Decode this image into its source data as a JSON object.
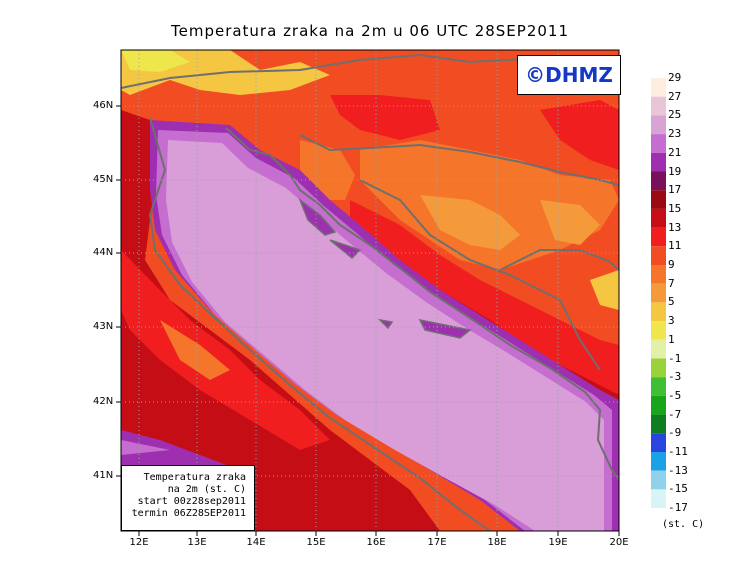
{
  "title": "Temperatura zraka na 2m u 06 UTC 28SEP2011",
  "logo_text": "©DHMZ",
  "info_box": {
    "line1": "Temperatura zraka",
    "line2": "na 2m (st. C)",
    "line3": "start 00z28sep2011",
    "line4": "termin 06Z28SEP2011"
  },
  "axes": {
    "lat_labels": [
      "46N",
      "45N",
      "44N",
      "43N",
      "42N",
      "41N"
    ],
    "lon_labels": [
      "12E",
      "13E",
      "14E",
      "15E",
      "16E",
      "17E",
      "18E",
      "19E",
      "20E"
    ]
  },
  "legend": {
    "unit": "(st. C)",
    "labels": [
      "29",
      "27",
      "25",
      "23",
      "21",
      "19",
      "17",
      "15",
      "13",
      "11",
      "9",
      "7",
      "5",
      "3",
      "1",
      "-1",
      "-3",
      "-5",
      "-7",
      "-9",
      "-11",
      "-13",
      "-15",
      "-17"
    ],
    "colors": [
      "#fdeee0",
      "#e8c6d8",
      "#d9a3d6",
      "#c56ed0",
      "#9e2fb0",
      "#7a0f5c",
      "#9b0a12",
      "#c40d15",
      "#f01e1e",
      "#f24d22",
      "#f5762b",
      "#f59a3a",
      "#f5c641",
      "#eee64a",
      "#e3f0a8",
      "#9ad23c",
      "#3fbf34",
      "#16a51b",
      "#0e7e20",
      "#2a44e0",
      "#1aa1e6",
      "#8fd2ea",
      "#d9f4f6"
    ]
  },
  "colors": {
    "sea": "#d99ed8",
    "coast_strip": "#c06ad2",
    "coast_dark": "#7a1b6e",
    "hot": "#c40d15",
    "warm": "#f24d22",
    "mild": "#f59a3a",
    "cool": "#f2dc4a",
    "border": "#6f6f6f"
  }
}
